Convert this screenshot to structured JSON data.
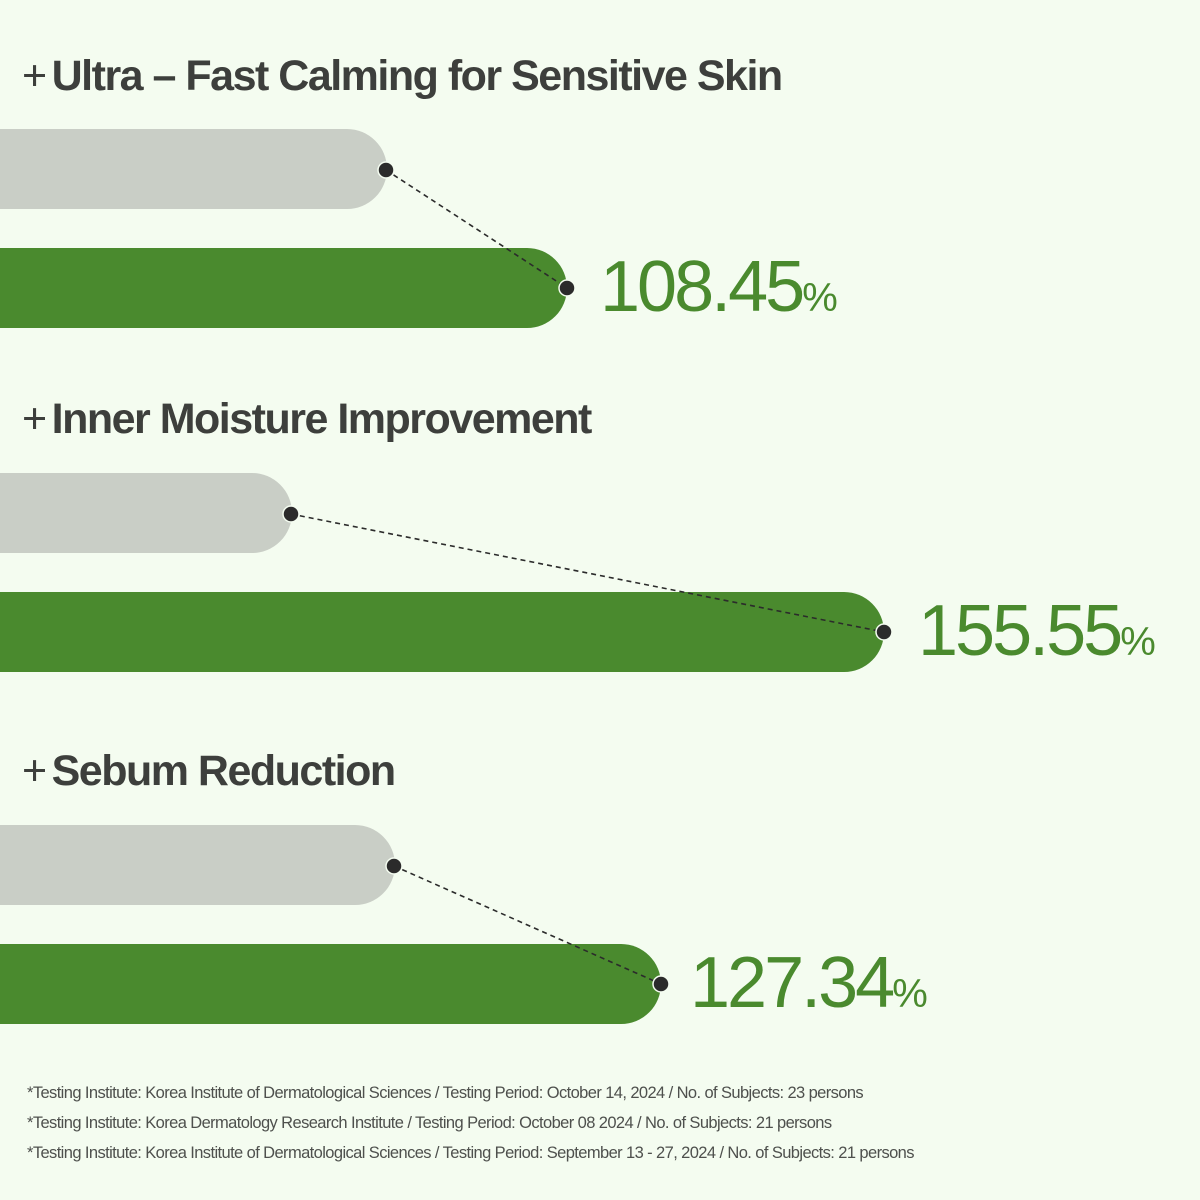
{
  "colors": {
    "background": "#f4fcf0",
    "before_bar": "#c9cec6",
    "after_bar": "#4a8a2e",
    "text": "#3d3f3c",
    "dot": "#2b2b2b"
  },
  "chart_data": {
    "type": "bar",
    "orientation": "horizontal",
    "categories": [
      "Ultra – Fast Calming for Sensitive Skin",
      "Inner Moisture Improvement",
      "Sebum Reduction"
    ],
    "series": [
      {
        "role": "before",
        "color": "#c9cec6"
      },
      {
        "role": "after",
        "color": "#4a8a2e",
        "values": [
          108.45,
          155.55,
          127.34
        ],
        "unit": "%"
      }
    ],
    "grid": false,
    "legend": "none"
  },
  "sections": [
    {
      "plus": "+",
      "title": "Ultra – Fast Calming for Sensitive Skin",
      "value": "108.45",
      "unit": "%"
    },
    {
      "plus": "+",
      "title": "Inner Moisture Improvement",
      "value": "155.55",
      "unit": "%"
    },
    {
      "plus": "+",
      "title": "Sebum Reduction",
      "value": "127.34",
      "unit": "%"
    }
  ],
  "footnotes": [
    "*Testing Institute: Korea Institute of Dermatological Sciences / Testing Period: October 14, 2024 / No. of Subjects: 23 persons",
    "*Testing Institute: Korea Dermatology Research Institute / Testing Period: October 08 2024 / No. of Subjects: 21 persons",
    "*Testing Institute: Korea Institute of Dermatological Sciences / Testing Period: September 13 - 27, 2024 / No. of Subjects: 21 persons"
  ]
}
